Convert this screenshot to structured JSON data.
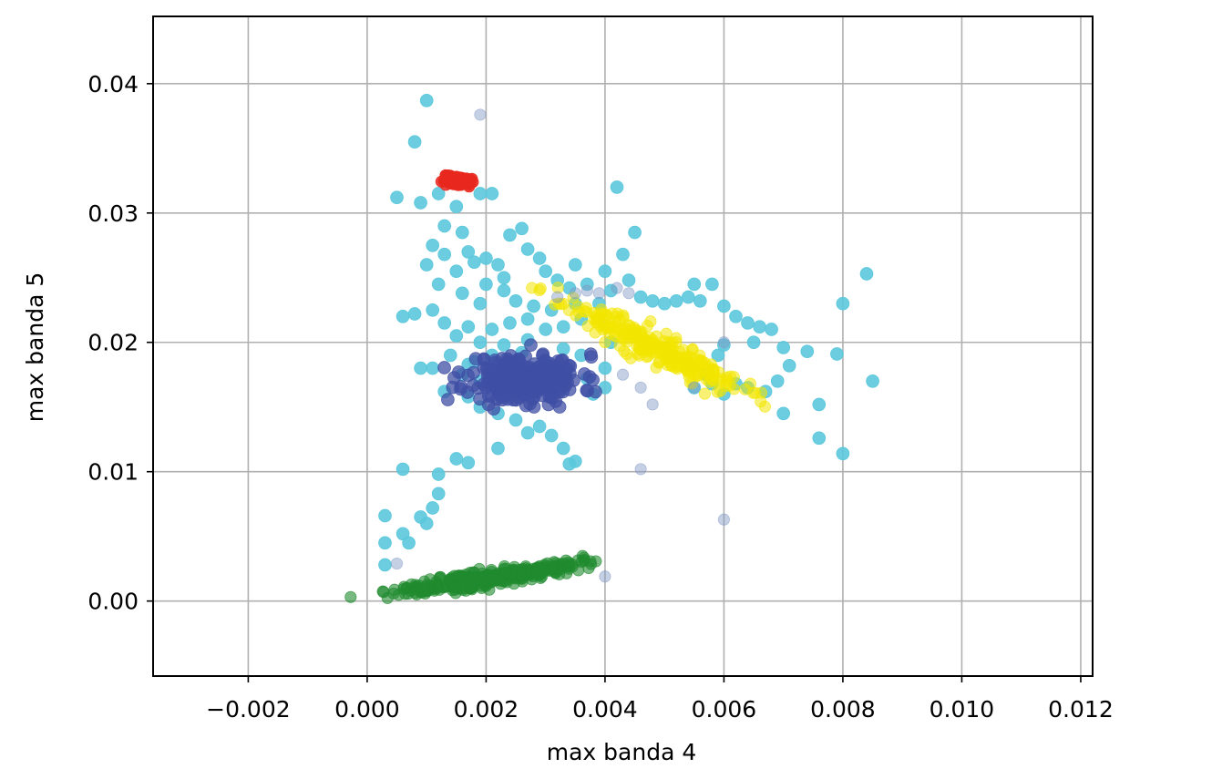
{
  "chart_data": {
    "type": "scatter",
    "title": "",
    "xlabel": "max banda 4",
    "ylabel": "max banda 5",
    "xlim": [
      -0.0036,
      0.0122
    ],
    "ylim": [
      -0.0058,
      0.0452
    ],
    "grid": true,
    "xticks": [
      -0.002,
      0.0,
      0.002,
      0.004,
      0.006,
      0.008,
      0.01,
      0.012
    ],
    "xtick_labels": [
      "−0.002",
      "0.000",
      "0.002",
      "0.004",
      "0.006",
      "0.008",
      "0.010",
      "0.012"
    ],
    "yticks": [
      0.0,
      0.01,
      0.02,
      0.03,
      0.04
    ],
    "ytick_labels": [
      "0.00",
      "0.01",
      "0.02",
      "0.03",
      "0.04"
    ],
    "series": [
      {
        "color": "#5bc8dc",
        "opacity": 0.9,
        "marker_size": 9,
        "points": [
          [
            0.001,
            0.0387
          ],
          [
            0.0008,
            0.0355
          ],
          [
            0.0005,
            0.0312
          ],
          [
            0.0009,
            0.0308
          ],
          [
            0.0012,
            0.0315
          ],
          [
            0.0015,
            0.0305
          ],
          [
            0.0019,
            0.0315
          ],
          [
            0.0021,
            0.0315
          ],
          [
            0.0013,
            0.029
          ],
          [
            0.0016,
            0.0285
          ],
          [
            0.0011,
            0.0275
          ],
          [
            0.0013,
            0.0268
          ],
          [
            0.001,
            0.026
          ],
          [
            0.0015,
            0.0255
          ],
          [
            0.0018,
            0.0262
          ],
          [
            0.0022,
            0.026
          ],
          [
            0.0024,
            0.0283
          ],
          [
            0.0026,
            0.0288
          ],
          [
            0.0027,
            0.0272
          ],
          [
            0.0029,
            0.0265
          ],
          [
            0.003,
            0.0255
          ],
          [
            0.0032,
            0.0248
          ],
          [
            0.0034,
            0.0242
          ],
          [
            0.002,
            0.0245
          ],
          [
            0.0023,
            0.024
          ],
          [
            0.0012,
            0.0245
          ],
          [
            0.0016,
            0.0238
          ],
          [
            0.0019,
            0.023
          ],
          [
            0.0025,
            0.0232
          ],
          [
            0.0028,
            0.0228
          ],
          [
            0.0031,
            0.0225
          ],
          [
            0.0035,
            0.023
          ],
          [
            0.0011,
            0.0225
          ],
          [
            0.0008,
            0.0222
          ],
          [
            0.0006,
            0.022
          ],
          [
            0.0013,
            0.0215
          ],
          [
            0.0017,
            0.0212
          ],
          [
            0.0021,
            0.021
          ],
          [
            0.0024,
            0.0215
          ],
          [
            0.0027,
            0.0218
          ],
          [
            0.003,
            0.021
          ],
          [
            0.0033,
            0.0212
          ],
          [
            0.0036,
            0.0218
          ],
          [
            0.0015,
            0.0205
          ],
          [
            0.0019,
            0.02
          ],
          [
            0.0023,
            0.0198
          ],
          [
            0.0027,
            0.0202
          ],
          [
            0.0033,
            0.0195
          ],
          [
            0.0036,
            0.019
          ],
          [
            0.0014,
            0.019
          ],
          [
            0.0017,
            0.0183
          ],
          [
            0.0009,
            0.018
          ],
          [
            0.0011,
            0.018
          ],
          [
            0.0016,
            0.0175
          ],
          [
            0.0019,
            0.017
          ],
          [
            0.0013,
            0.0162
          ],
          [
            0.0017,
            0.0158
          ],
          [
            0.0019,
            0.015
          ],
          [
            0.0022,
            0.0145
          ],
          [
            0.0025,
            0.014
          ],
          [
            0.0029,
            0.0135
          ],
          [
            0.0031,
            0.0128
          ],
          [
            0.0027,
            0.013
          ],
          [
            0.0022,
            0.0118
          ],
          [
            0.0033,
            0.0118
          ],
          [
            0.0035,
            0.0108
          ],
          [
            0.0034,
            0.0106
          ],
          [
            0.0015,
            0.011
          ],
          [
            0.0017,
            0.0107
          ],
          [
            0.0006,
            0.0102
          ],
          [
            0.0012,
            0.0098
          ],
          [
            0.0012,
            0.0083
          ],
          [
            0.0011,
            0.0072
          ],
          [
            0.0009,
            0.0065
          ],
          [
            0.001,
            0.006
          ],
          [
            0.0006,
            0.0052
          ],
          [
            0.0007,
            0.0045
          ],
          [
            0.0003,
            0.0066
          ],
          [
            0.0003,
            0.0045
          ],
          [
            0.0003,
            0.0028
          ],
          [
            0.0042,
            0.032
          ],
          [
            0.0045,
            0.0285
          ],
          [
            0.0043,
            0.0268
          ],
          [
            0.004,
            0.0255
          ],
          [
            0.0044,
            0.0248
          ],
          [
            0.0041,
            0.024
          ],
          [
            0.0037,
            0.0245
          ],
          [
            0.0039,
            0.023
          ],
          [
            0.0046,
            0.0235
          ],
          [
            0.0048,
            0.0232
          ],
          [
            0.005,
            0.023
          ],
          [
            0.0052,
            0.0232
          ],
          [
            0.0054,
            0.0235
          ],
          [
            0.0056,
            0.0232
          ],
          [
            0.0058,
            0.0245
          ],
          [
            0.0055,
            0.0245
          ],
          [
            0.006,
            0.0228
          ],
          [
            0.0062,
            0.022
          ],
          [
            0.0064,
            0.0215
          ],
          [
            0.0066,
            0.0212
          ],
          [
            0.0068,
            0.021
          ],
          [
            0.0065,
            0.02
          ],
          [
            0.007,
            0.0196
          ],
          [
            0.0074,
            0.0193
          ],
          [
            0.0079,
            0.0191
          ],
          [
            0.008,
            0.023
          ],
          [
            0.0084,
            0.0253
          ],
          [
            0.0085,
            0.017
          ],
          [
            0.0069,
            0.017
          ],
          [
            0.0071,
            0.0182
          ],
          [
            0.0067,
            0.0162
          ],
          [
            0.0064,
            0.0165
          ],
          [
            0.0062,
            0.0168
          ],
          [
            0.006,
            0.016
          ],
          [
            0.0058,
            0.0168
          ],
          [
            0.0057,
            0.0175
          ],
          [
            0.0055,
            0.0165
          ],
          [
            0.0076,
            0.0152
          ],
          [
            0.007,
            0.0145
          ],
          [
            0.0076,
            0.0126
          ],
          [
            0.008,
            0.0114
          ],
          [
            0.006,
            0.0198
          ],
          [
            0.0059,
            0.019
          ],
          [
            0.0041,
            0.02
          ],
          [
            0.004,
            0.018
          ],
          [
            0.004,
            0.0165
          ],
          [
            0.0038,
            0.016
          ],
          [
            0.0037,
            0.0172
          ],
          [
            0.003,
            0.0185
          ],
          [
            0.0026,
            0.0192
          ],
          [
            0.0021,
            0.019
          ],
          [
            0.0018,
            0.0185
          ],
          [
            0.002,
            0.0265
          ],
          [
            0.0017,
            0.027
          ],
          [
            0.0023,
            0.025
          ],
          [
            0.0035,
            0.026
          ]
        ]
      },
      {
        "color": "#3f4fa4",
        "opacity": 0.75,
        "marker_size": 9,
        "cluster": {
          "cx": 0.00265,
          "cy": 0.0172,
          "sx": 0.00048,
          "sy": 0.00095,
          "n": 260,
          "seed": 11
        }
      },
      {
        "color": "#f2e600",
        "opacity": 0.55,
        "marker_size": 8,
        "cluster": {
          "cx": 0.0048,
          "cy": 0.0197,
          "sx": 0.00075,
          "sy": 0.0006,
          "n": 260,
          "seed": 23,
          "slope": -2.3
        }
      },
      {
        "color": "#1f8a2e",
        "opacity": 0.6,
        "marker_size": 8,
        "cluster": {
          "cx": 0.00205,
          "cy": 0.0018,
          "sx": 0.00075,
          "sy": 0.00033,
          "n": 320,
          "seed": 37,
          "slope": 0.7
        }
      },
      {
        "color": "#e8281e",
        "opacity": 0.85,
        "marker_size": 8,
        "cluster": {
          "cx": 0.00148,
          "cy": 0.0325,
          "sx": 0.00015,
          "sy": 0.00022,
          "n": 70,
          "seed": 51
        }
      },
      {
        "color": "#7f96c4",
        "opacity": 0.45,
        "marker_size": 8,
        "points": [
          [
            0.0019,
            0.0376
          ],
          [
            0.0046,
            0.0102
          ],
          [
            0.006,
            0.0063
          ],
          [
            0.004,
            0.0019
          ],
          [
            0.0005,
            0.0029
          ],
          [
            0.0048,
            0.0152
          ],
          [
            0.0043,
            0.0175
          ],
          [
            0.0035,
            0.0238
          ],
          [
            0.0037,
            0.024
          ],
          [
            0.0039,
            0.0238
          ],
          [
            0.0042,
            0.0242
          ],
          [
            0.0044,
            0.0238
          ],
          [
            0.0046,
            0.0165
          ],
          [
            0.0055,
            0.0165
          ],
          [
            0.006,
            0.02
          ],
          [
            0.0032,
            0.0235
          ]
        ]
      }
    ]
  }
}
